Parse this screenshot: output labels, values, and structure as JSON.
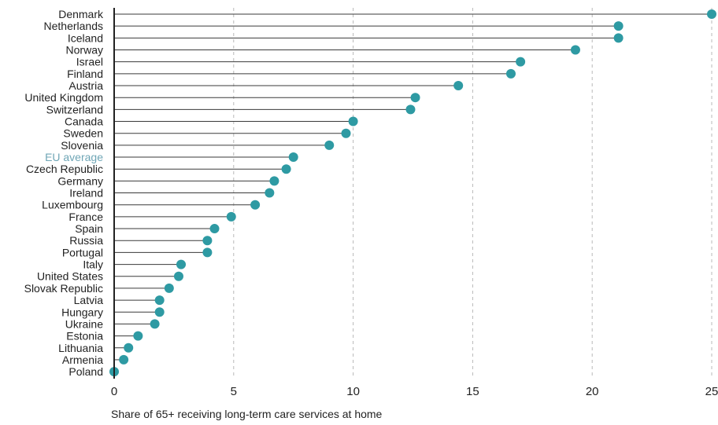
{
  "chart_data": {
    "type": "scatter",
    "style": "lollipop",
    "orientation": "horizontal",
    "title": "",
    "xlabel": "Share of 65+ receiving long-term care services at home",
    "ylabel": "",
    "xlim": [
      0,
      25
    ],
    "xticks": [
      0,
      5,
      10,
      15,
      20,
      25
    ],
    "grid": "vertical dashed",
    "marker_color": "#2e9aa3",
    "highlight_label_color": "#6fa6b6",
    "highlight": "EU average",
    "categories": [
      "Denmark",
      "Netherlands",
      "Iceland",
      "Norway",
      "Israel",
      "Finland",
      "Austria",
      "United Kingdom",
      "Switzerland",
      "Canada",
      "Sweden",
      "Slovenia",
      "EU average",
      "Czech Republic",
      "Germany",
      "Ireland",
      "Luxembourg",
      "France",
      "Spain",
      "Russia",
      "Portugal",
      "Italy",
      "United States",
      "Slovak Republic",
      "Latvia",
      "Hungary",
      "Ukraine",
      "Estonia",
      "Lithuania",
      "Armenia",
      "Poland"
    ],
    "values": [
      25.0,
      21.1,
      21.1,
      19.3,
      17.0,
      16.6,
      14.4,
      12.6,
      12.4,
      10.0,
      9.7,
      9.0,
      7.5,
      7.2,
      6.7,
      6.5,
      5.9,
      4.9,
      4.2,
      3.9,
      3.9,
      2.8,
      2.7,
      2.3,
      1.9,
      1.9,
      1.7,
      1.0,
      0.6,
      0.4,
      0.0
    ]
  }
}
